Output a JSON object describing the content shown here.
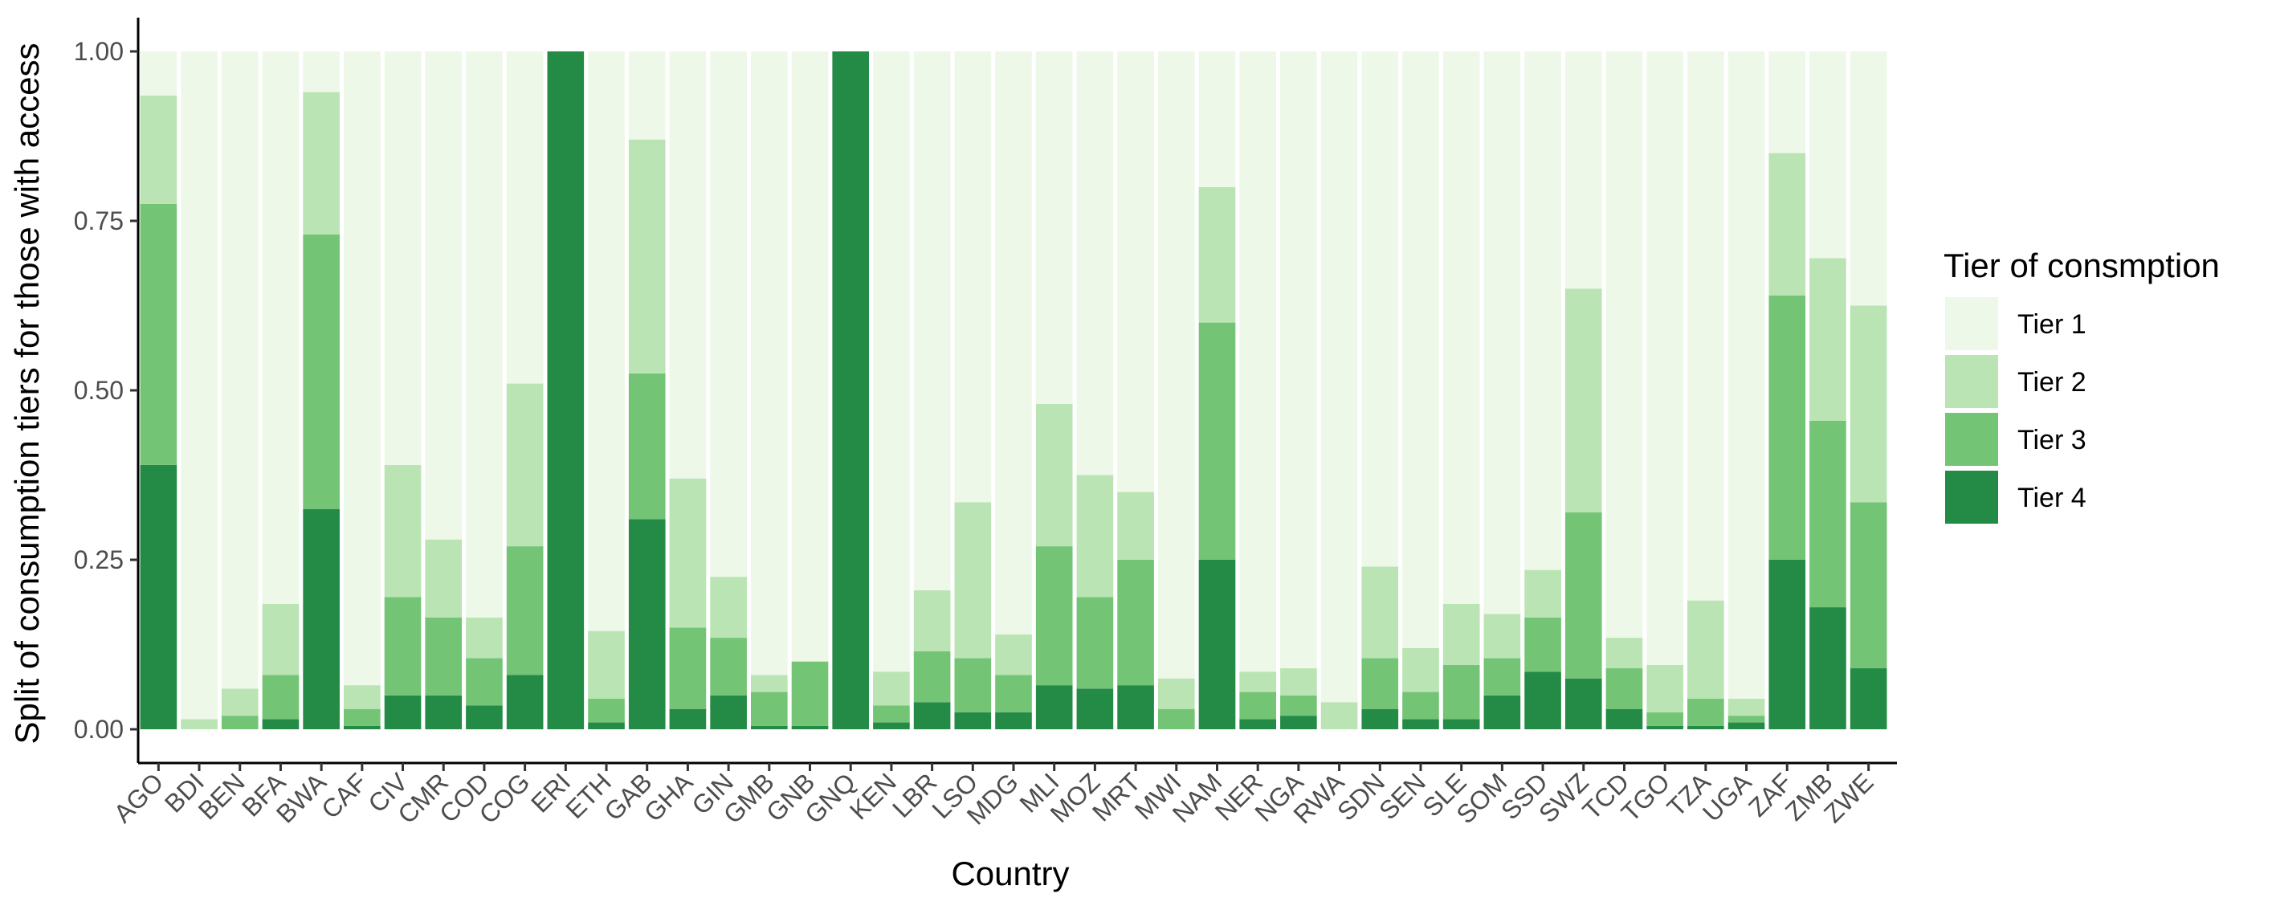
{
  "chart_data": {
    "type": "bar",
    "stacked": true,
    "title": "",
    "xlabel": "Country",
    "ylabel": "Split of consumption tiers for those with access",
    "ylim": [
      0,
      1
    ],
    "yticks": [
      "0.00",
      "0.25",
      "0.50",
      "0.75",
      "1.00"
    ],
    "ytick_values": [
      0,
      0.25,
      0.5,
      0.75,
      1
    ],
    "grid": false,
    "legend": {
      "title": "Tier of consmption",
      "placement": "right"
    },
    "categories": [
      "AGO",
      "BDI",
      "BEN",
      "BFA",
      "BWA",
      "CAF",
      "CIV",
      "CMR",
      "COD",
      "COG",
      "ERI",
      "ETH",
      "GAB",
      "GHA",
      "GIN",
      "GMB",
      "GNB",
      "GNQ",
      "KEN",
      "LBR",
      "LSO",
      "MDG",
      "MLI",
      "MOZ",
      "MRT",
      "MWI",
      "NAM",
      "NER",
      "NGA",
      "RWA",
      "SDN",
      "SEN",
      "SLE",
      "SOM",
      "SSD",
      "SWZ",
      "TCD",
      "TGO",
      "TZA",
      "UGA",
      "ZAF",
      "ZMB",
      "ZWE"
    ],
    "series": [
      {
        "name": "Tier 1",
        "color": "#edf8e9",
        "values": [
          0.065,
          0.985,
          0.94,
          0.815,
          0.06,
          0.935,
          0.61,
          0.72,
          0.835,
          0.49,
          0,
          0.855,
          0.13,
          0.63,
          0.775,
          0.92,
          0.9,
          0,
          0.915,
          0.795,
          0.665,
          0.86,
          0.52,
          0.625,
          0.65,
          0.925,
          0.2,
          0.915,
          0.91,
          0.96,
          0.76,
          0.88,
          0.815,
          0.83,
          0.765,
          0.35,
          0.865,
          0.905,
          0.81,
          0.955,
          0.15,
          0.305,
          0.375
        ]
      },
      {
        "name": "Tier 2",
        "color": "#bae4b3",
        "values": [
          0.16,
          0.015,
          0.04,
          0.105,
          0.21,
          0.035,
          0.195,
          0.115,
          0.06,
          0.24,
          0,
          0.1,
          0.345,
          0.22,
          0.09,
          0.025,
          0,
          0,
          0.05,
          0.09,
          0.23,
          0.06,
          0.21,
          0.18,
          0.1,
          0.045,
          0.2,
          0.03,
          0.04,
          0.04,
          0.135,
          0.065,
          0.09,
          0.065,
          0.07,
          0.33,
          0.045,
          0.07,
          0.145,
          0.025,
          0.21,
          0.24,
          0.29
        ]
      },
      {
        "name": "Tier 3",
        "color": "#74c476",
        "values": [
          0.385,
          0,
          0.02,
          0.065,
          0.405,
          0.025,
          0.145,
          0.115,
          0.07,
          0.19,
          0,
          0.035,
          0.215,
          0.12,
          0.085,
          0.05,
          0.095,
          0,
          0.025,
          0.075,
          0.08,
          0.055,
          0.205,
          0.135,
          0.185,
          0.03,
          0.35,
          0.04,
          0.03,
          0,
          0.075,
          0.04,
          0.08,
          0.055,
          0.08,
          0.245,
          0.06,
          0.02,
          0.04,
          0.01,
          0.39,
          0.275,
          0.245
        ]
      },
      {
        "name": "Tier 4",
        "color": "#238b45",
        "values": [
          0.39,
          0,
          0,
          0.015,
          0.325,
          0.005,
          0.05,
          0.05,
          0.035,
          0.08,
          1,
          0.01,
          0.31,
          0.03,
          0.05,
          0.005,
          0.005,
          1,
          0.01,
          0.04,
          0.025,
          0.025,
          0.065,
          0.06,
          0.065,
          0,
          0.25,
          0.015,
          0.02,
          0,
          0.03,
          0.015,
          0.015,
          0.05,
          0.085,
          0.075,
          0.03,
          0.005,
          0.005,
          0.01,
          0.25,
          0.18,
          0.09
        ]
      }
    ]
  }
}
